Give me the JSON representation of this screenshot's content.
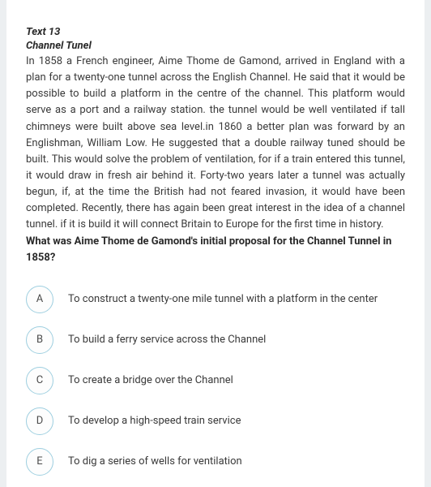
{
  "textLabel": "Text 13",
  "title": "Channel Tunel",
  "passage": "In 1858 a French engineer, Aime Thome de Gamond, arrived in England with a plan for a twenty-one tunnel across the English Channel. He said that it would be possible to build a platform in the centre of the channel. This platform would serve as a port and a railway station. the tunnel would be well ventilated if tall chimneys were built above sea level.in 1860 a better plan was forward by an Englishman, William Low. He suggested that a double railway tuned should be built. This would solve the problem of ventilation, for if a train entered this tunnel, it would draw in fresh air behind it. Forty-two years later a tunnel was actually begun, if, at the time the British had not feared invasion, it would have been completed. Recently, there has again been great interest in the idea of a channel tunnel. if it is build it will connect Britain to Europe for the first time in history.",
  "question": "What was Aime Thome de Gamond's initial proposal for the Channel Tunnel in 1858?",
  "options": [
    {
      "letter": "A",
      "text": "To construct a twenty-one mile tunnel with a platform in the center"
    },
    {
      "letter": "B",
      "text": "To build a ferry service across the Channel"
    },
    {
      "letter": "C",
      "text": "To create a bridge over the Channel"
    },
    {
      "letter": "D",
      "text": "To develop a high-speed train service"
    },
    {
      "letter": "E",
      "text": "To dig a series of wells for ventilation"
    }
  ],
  "colors": {
    "circleBorder": "#9ecfe0",
    "pageBg": "#ffffff",
    "bodyBg": "#eceff1",
    "text": "#3a3a3a",
    "heading": "#2a2a2a"
  }
}
